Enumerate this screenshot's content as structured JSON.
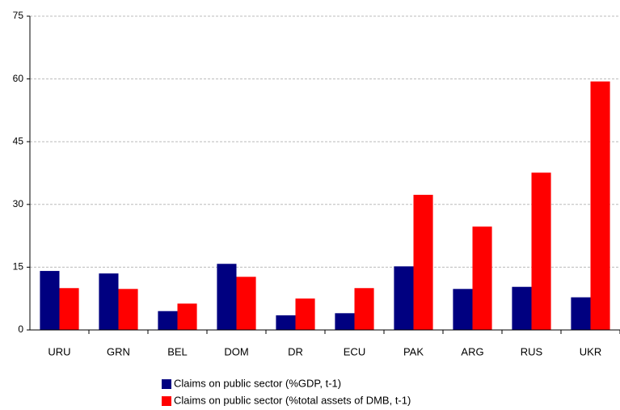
{
  "chart_data": {
    "type": "bar",
    "categories": [
      "URU",
      "GRN",
      "BEL",
      "DOM",
      "DR",
      "ECU",
      "PAK",
      "ARG",
      "RUS",
      "UKR"
    ],
    "series": [
      {
        "name": "Claims on public sector (%GDP, t-1)",
        "color": "#000080",
        "values": [
          14.1,
          13.5,
          4.5,
          15.8,
          3.5,
          4,
          15.2,
          9.8,
          10.3,
          7.8
        ]
      },
      {
        "name": "Claims on public sector (%total assets of DMB, t-1)",
        "color": "#ff0000",
        "values": [
          10,
          9.8,
          6.3,
          12.7,
          7.5,
          10,
          32.3,
          24.7,
          37.6,
          59.4
        ]
      }
    ],
    "ylim": [
      0,
      75
    ],
    "yticks": [
      0,
      15,
      30,
      45,
      60,
      75
    ],
    "grid": true,
    "legend": "bottom"
  }
}
